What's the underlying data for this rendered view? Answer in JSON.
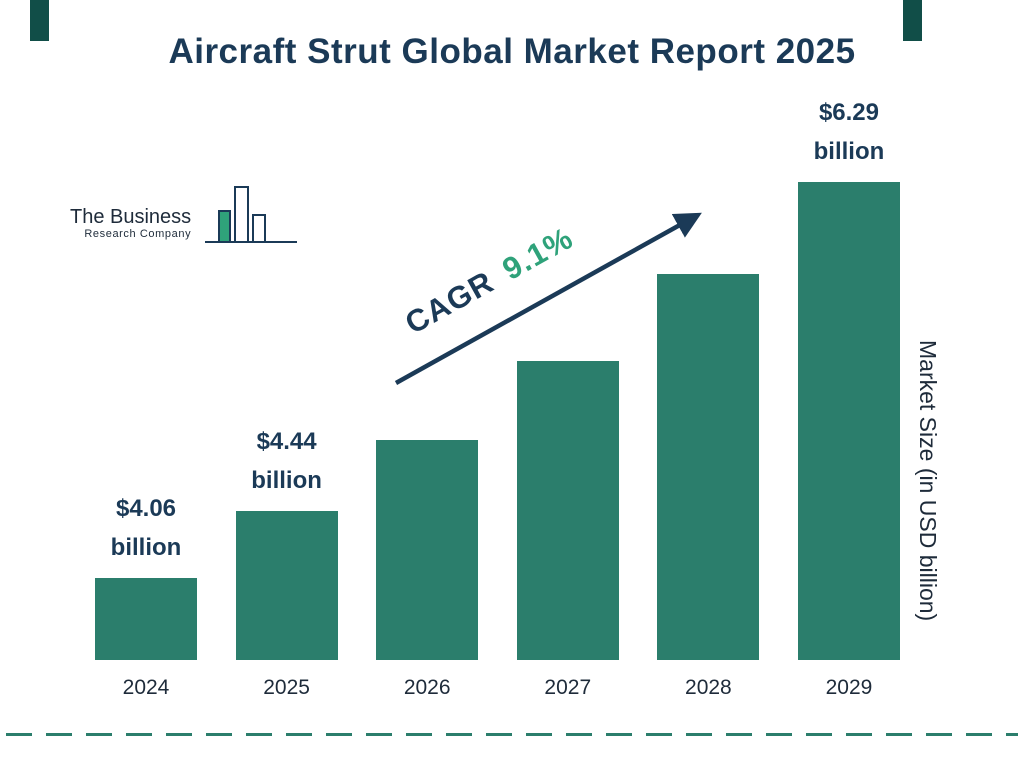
{
  "page": {
    "title": "Aircraft Strut Global Market Report 2025"
  },
  "logo": {
    "line1": "The Business",
    "line2": "Research Company"
  },
  "cagr": {
    "prefix": "CAGR",
    "value": "9.1%"
  },
  "right_axis_label": "Market Size (in USD billion)",
  "colors": {
    "navy": "#1b3a57",
    "bar": "#2b7e6c",
    "green": "#2fa27a",
    "accent": "#114e48",
    "text_dark": "#1e2b3a"
  },
  "chart_data": {
    "type": "bar",
    "title": "Aircraft Strut Global Market Report 2025",
    "categories": [
      "2024",
      "2025",
      "2026",
      "2027",
      "2028",
      "2029"
    ],
    "values": [
      4.06,
      4.44,
      4.84,
      5.28,
      5.77,
      6.29
    ],
    "unit": "USD billion",
    "xlabel": "",
    "ylabel": "Market Size (in USD billion)",
    "ylim": [
      3.6,
      6.29
    ],
    "cagr_percent": 9.1,
    "grid": false,
    "legend": false,
    "data_labels": [
      {
        "index": 0,
        "lines": [
          "$4.06",
          "billion"
        ]
      },
      {
        "index": 1,
        "lines": [
          "$4.44",
          "billion"
        ]
      },
      {
        "index": 5,
        "lines": [
          "$6.29",
          "billion"
        ]
      }
    ]
  }
}
